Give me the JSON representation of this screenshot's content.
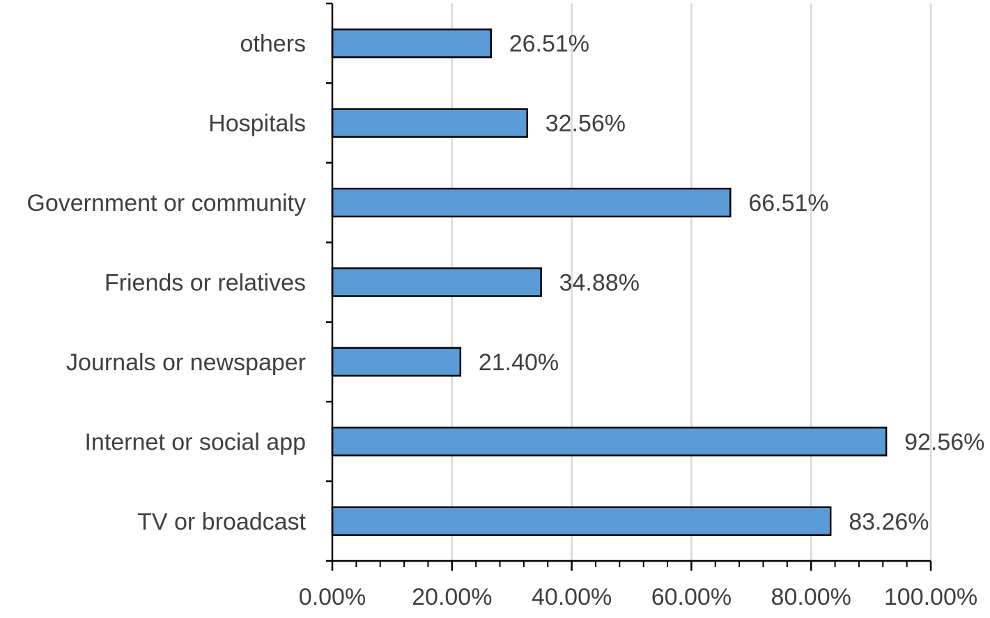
{
  "chart_data": {
    "type": "bar",
    "orientation": "horizontal",
    "categories": [
      "others",
      "Hospitals",
      "Government or community",
      "Friends or relatives",
      "Journals or newspaper",
      "Internet or social app",
      "TV or broadcast"
    ],
    "values": [
      26.51,
      32.56,
      66.51,
      34.88,
      21.4,
      92.56,
      83.26
    ],
    "value_labels": [
      "26.51%",
      "32.56%",
      "66.51%",
      "34.88%",
      "21.40%",
      "92.56%",
      "83.26%"
    ],
    "x_tick_labels": [
      "0.00%",
      "20.00%",
      "40.00%",
      "60.00%",
      "80.00%",
      "100.00%"
    ],
    "xlim": [
      0,
      100
    ],
    "x_ticks": [
      0,
      20,
      40,
      60,
      80,
      100
    ],
    "x_minor_step": 4,
    "grid": true,
    "legend": false,
    "title": "",
    "xlabel": "",
    "ylabel": "",
    "colors": {
      "bar_fill": "#5B9BD5",
      "bar_stroke": "#000000",
      "grid": "#D9D9D9",
      "axis": "#000000",
      "text": "#404040"
    }
  }
}
